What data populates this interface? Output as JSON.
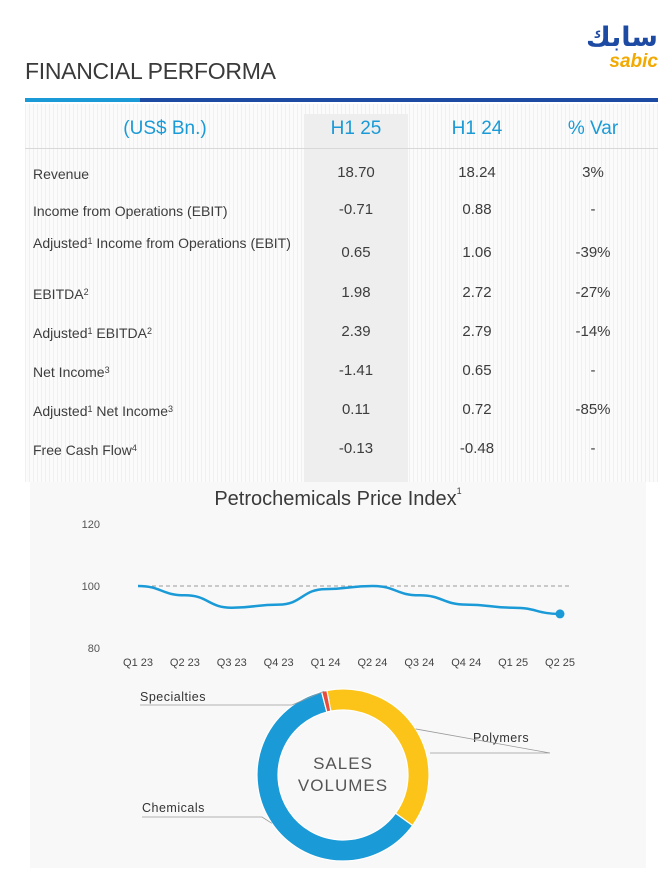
{
  "header": {
    "title": "FINANCIAL PERFORMA",
    "logo_arabic": "سابك",
    "logo_latin": "sabic"
  },
  "table": {
    "columns": [
      "(US$ Bn.)",
      "H1 25",
      "H1 24",
      "% Var"
    ],
    "rows": [
      {
        "label": "Revenue",
        "sup": "",
        "label_suffix": "",
        "sup2": "",
        "h125": "18.70",
        "h124": "18.24",
        "var": "3%"
      },
      {
        "label": "Income from Operations (EBIT)",
        "sup": "",
        "label_suffix": "",
        "sup2": "",
        "h125": "-0.71",
        "h124": "0.88",
        "var": "-"
      },
      {
        "label": "Adjusted",
        "sup": "1",
        "label_suffix": " Income from Operations (EBIT)",
        "sup2": "",
        "h125": "0.65",
        "h124": "1.06",
        "var": "-39%"
      },
      {
        "label": "EBITDA",
        "sup": "2",
        "label_suffix": "",
        "sup2": "",
        "h125": "1.98",
        "h124": "2.72",
        "var": "-27%"
      },
      {
        "label": "Adjusted",
        "sup": "1",
        "label_suffix": " EBITDA",
        "sup2": "2",
        "h125": "2.39",
        "h124": "2.79",
        "var": "-14%"
      },
      {
        "label": "Net Income",
        "sup": "3",
        "label_suffix": "",
        "sup2": "",
        "h125": "-1.41",
        "h124": "0.65",
        "var": "-"
      },
      {
        "label": "Adjusted",
        "sup": "1",
        "label_suffix": " Net Income",
        "sup2": "3",
        "h125": "0.11",
        "h124": "0.72",
        "var": "-85%"
      },
      {
        "label": "Free Cash Flow",
        "sup": "4",
        "label_suffix": "",
        "sup2": "",
        "h125": "-0.13",
        "h124": "-0.48",
        "var": "-"
      }
    ]
  },
  "chart_data": [
    {
      "type": "line",
      "title": "Petrochemicals Price Index",
      "title_sup": "1",
      "x": [
        "Q1 23",
        "Q2 23",
        "Q3 23",
        "Q4 23",
        "Q1 24",
        "Q2 24",
        "Q3 24",
        "Q4 24",
        "Q1 25",
        "Q2 25"
      ],
      "values": [
        100,
        97,
        93,
        94,
        99,
        100,
        97,
        94,
        93,
        91
      ],
      "yticks": [
        80,
        100,
        120
      ],
      "ylim": [
        80,
        120
      ],
      "reference_line": 100,
      "line_color": "#1a9ad6",
      "grid": false
    },
    {
      "type": "pie",
      "style": "donut",
      "center_label": [
        "SALES",
        "VOLUMES"
      ],
      "slices": [
        {
          "label": "Polymers",
          "value": 38,
          "color": "#fcc419"
        },
        {
          "label": "Chemicals",
          "value": 61,
          "color": "#1a9ad6"
        },
        {
          "label": "Specialties",
          "value": 1,
          "color": "#e74c3c"
        }
      ]
    }
  ]
}
